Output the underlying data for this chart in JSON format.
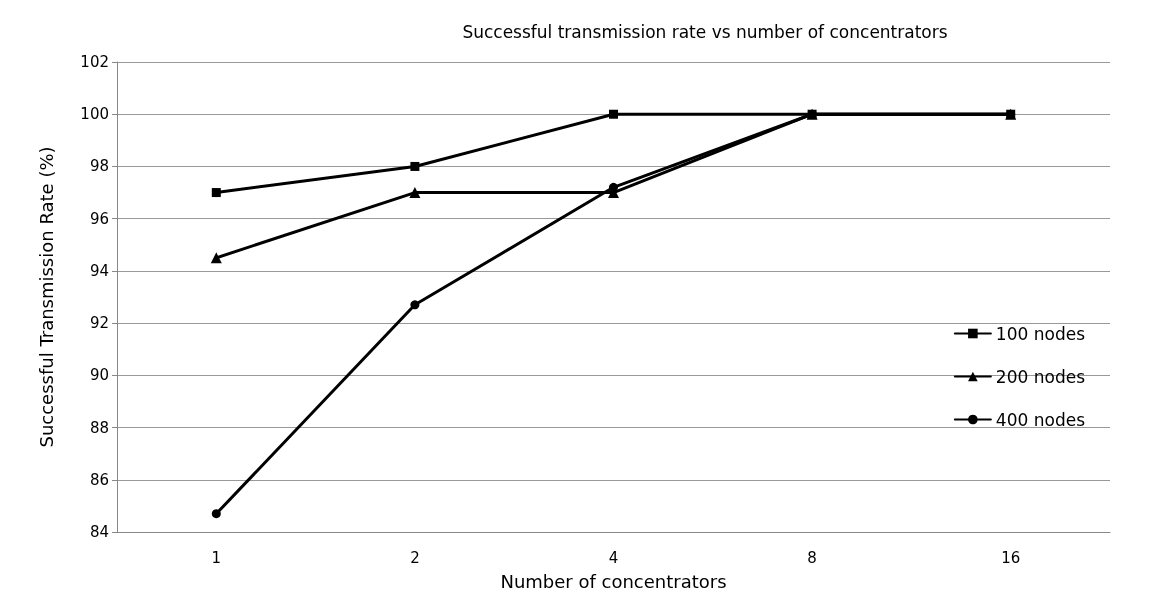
{
  "chart_data": {
    "type": "line",
    "title": "Successful transmission rate vs number of concentrators",
    "xlabel": "Number of concentrators",
    "ylabel": "Successful Transmission Rate (%)",
    "categories": [
      "1",
      "2",
      "4",
      "8",
      "16"
    ],
    "series": [
      {
        "name": "100 nodes",
        "color": "#000000",
        "marker": "square",
        "values": [
          97,
          98,
          100,
          100,
          100
        ]
      },
      {
        "name": "200 nodes",
        "color": "#000000",
        "marker": "triangle",
        "values": [
          94.5,
          97,
          97,
          100,
          100
        ]
      },
      {
        "name": "400 nodes",
        "color": "#000000",
        "marker": "circle",
        "values": [
          84.7,
          92.7,
          97.2,
          100,
          100
        ]
      }
    ],
    "ylim": [
      84,
      102
    ],
    "yticks": [
      84,
      86,
      88,
      90,
      92,
      94,
      96,
      98,
      100,
      102
    ],
    "grid": "y",
    "legend": "right"
  }
}
